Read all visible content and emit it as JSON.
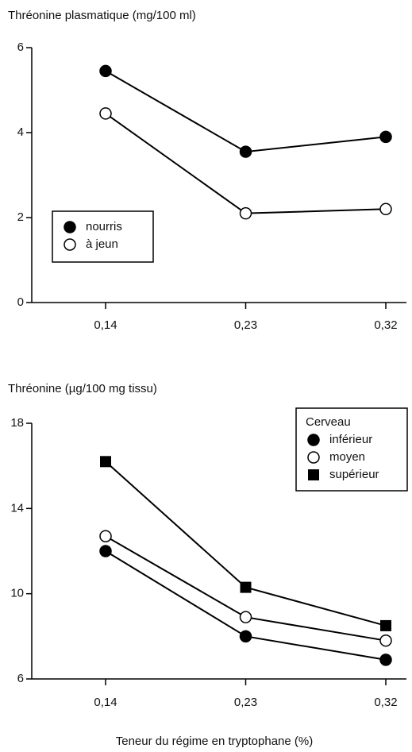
{
  "chart_data": [
    {
      "type": "line",
      "title": "Thréonine plasmatique (mg/100 ml)",
      "categories": [
        "0,14",
        "0,23",
        "0,32"
      ],
      "ylim": [
        0,
        6
      ],
      "yticks": [
        0,
        2,
        4,
        6
      ],
      "legend": "lower left",
      "series": [
        {
          "name": "nourris",
          "color": "#000000",
          "marker": "filled-circle",
          "values": [
            5.45,
            3.55,
            3.9
          ]
        },
        {
          "name": "à jeun",
          "color": "#000000",
          "marker": "open-circle",
          "values": [
            4.45,
            2.1,
            2.2
          ]
        }
      ]
    },
    {
      "type": "line",
      "title": "Thréonine  (µg/100 mg tissu)",
      "categories": [
        "0,14",
        "0,23",
        "0,32"
      ],
      "xlabel": "Teneur du régime en tryptophane (%)",
      "ylim": [
        6,
        18
      ],
      "yticks": [
        6,
        10,
        14,
        18
      ],
      "legend": "upper right",
      "legend_title": "Cerveau",
      "series": [
        {
          "name": "inférieur",
          "color": "#000000",
          "marker": "filled-circle",
          "values": [
            12.0,
            8.0,
            6.9
          ]
        },
        {
          "name": "moyen",
          "color": "#000000",
          "marker": "open-circle",
          "values": [
            12.7,
            8.9,
            7.8
          ]
        },
        {
          "name": "supérieur",
          "color": "#000000",
          "marker": "filled-square",
          "values": [
            16.2,
            10.3,
            8.5
          ]
        }
      ]
    }
  ]
}
